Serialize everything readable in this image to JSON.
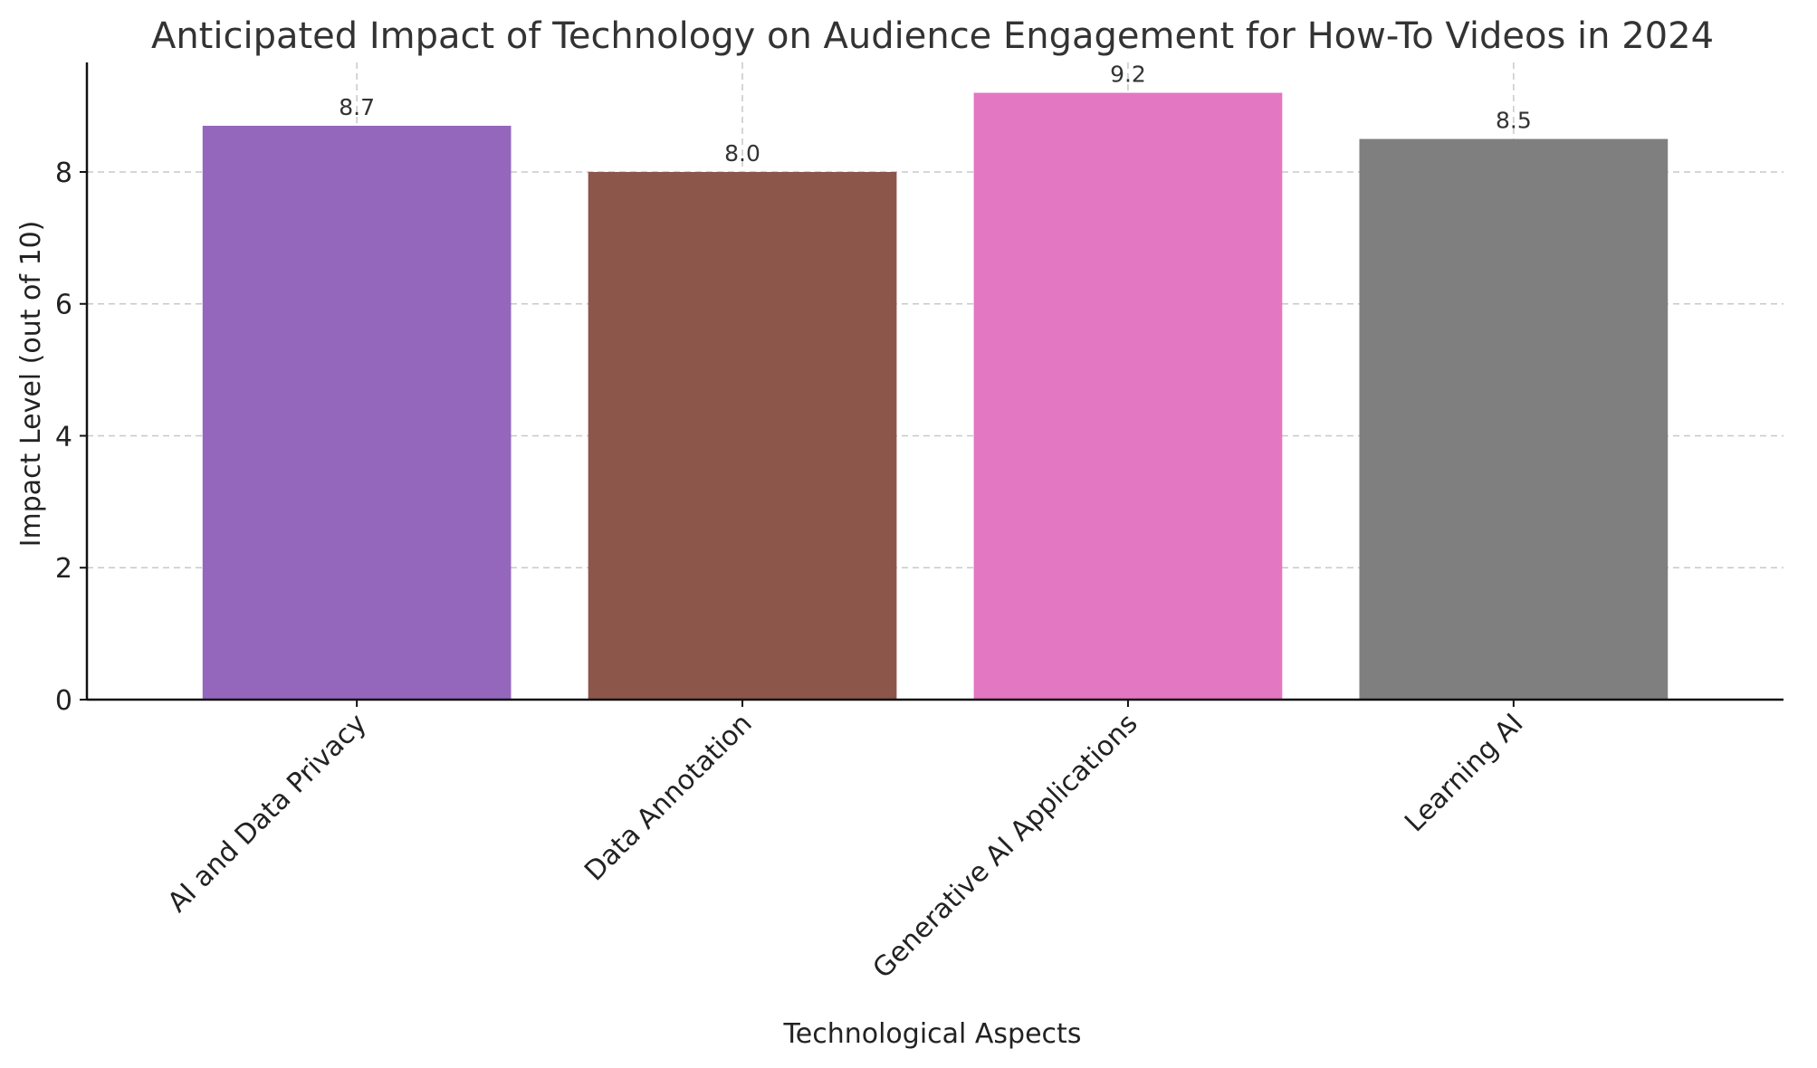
{
  "chart_data": {
    "type": "bar",
    "title": "Anticipated Impact of Technology on Audience Engagement for How-To Videos in 2024",
    "xlabel": "Technological Aspects",
    "ylabel": "Impact Level (out of 10)",
    "categories": [
      "AI and Data Privacy",
      "Data Annotation",
      "Generative AI Applications",
      "Learning AI"
    ],
    "values": [
      8.7,
      8.0,
      9.2,
      8.5
    ],
    "value_labels": [
      "8.7",
      "8.0",
      "9.2",
      "8.5"
    ],
    "colors": [
      "#9467bd",
      "#8c564b",
      "#e377c2",
      "#7f7f7f"
    ],
    "ylim": [
      0,
      9.66
    ],
    "yticks": [
      0,
      2,
      4,
      6,
      8
    ],
    "ytick_labels": [
      "0",
      "2",
      "4",
      "6",
      "8"
    ],
    "grid": true
  }
}
